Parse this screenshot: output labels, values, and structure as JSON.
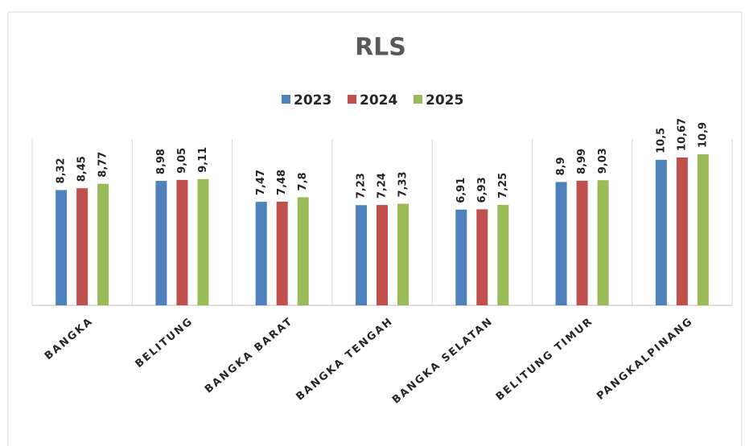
{
  "chart_data": {
    "type": "bar",
    "title": "RLS",
    "categories": [
      "BANGKA",
      "BELITUNG",
      "BANGKA BARAT",
      "BANGKA TENGAH",
      "BANGKA SELATAN",
      "BELITUNG TIMUR",
      "PANGKALPINANG"
    ],
    "series": [
      {
        "name": "2023",
        "color": "#4f81bd",
        "values": [
          8.32,
          8.98,
          7.47,
          7.23,
          6.91,
          8.9,
          10.5
        ],
        "value_labels": [
          "8,32",
          "8,98",
          "7,47",
          "7,23",
          "6,91",
          "8,9",
          "10,5"
        ]
      },
      {
        "name": "2024",
        "color": "#c0504d",
        "values": [
          8.45,
          9.05,
          7.48,
          7.24,
          6.93,
          8.99,
          10.67
        ],
        "value_labels": [
          "8,45",
          "9,05",
          "7,48",
          "7,24",
          "6,93",
          "8,99",
          "10,67"
        ]
      },
      {
        "name": "2025",
        "color": "#9bbb59",
        "values": [
          8.77,
          9.11,
          7.8,
          7.33,
          7.25,
          9.03,
          10.9
        ],
        "value_labels": [
          "8,77",
          "9,11",
          "7,8",
          "7,33",
          "7,25",
          "9,03",
          "10,9"
        ]
      }
    ],
    "ylim": [
      0,
      12
    ],
    "legend": "top"
  }
}
